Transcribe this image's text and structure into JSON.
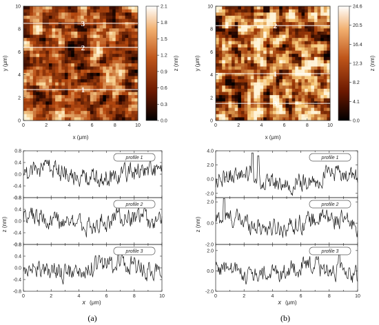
{
  "panels": [
    {
      "id": "a",
      "caption": "(a)",
      "afm": {
        "xlabel": "x  (μm)",
        "ylabel": "y  (μm)",
        "xticks": [
          "0",
          "2",
          "4",
          "6",
          "8",
          "10"
        ],
        "yticks": [
          "0",
          "2",
          "4",
          "6",
          "8",
          "10"
        ],
        "colorbar_label": "z  (nm)",
        "colorbar_ticks": [
          "2.1",
          "1.8",
          "1.5",
          "1.2",
          "0.9",
          "0.6",
          "0.3",
          "0.0"
        ],
        "colorbar_range": [
          0.0,
          2.1
        ],
        "profile_lines": [
          {
            "label": "1",
            "y_um": 2.7
          },
          {
            "label": "2",
            "y_um": 6.4
          },
          {
            "label": "3",
            "y_um": 8.5
          }
        ],
        "colors": {
          "dark": "#3a0c00",
          "mid": "#b84a10",
          "light": "#f7d090",
          "top": "#fff6dc"
        }
      },
      "profiles": {
        "xlabel": "x",
        "xunit": "(μm)",
        "ylabel": "z  (nm)",
        "xticks": [
          "0",
          "2",
          "4",
          "6",
          "8",
          "10"
        ],
        "subplots": [
          {
            "name": "profile 1",
            "yticks": [
              "0.8",
              "0.4",
              "0.0",
              "-0.4",
              "-0.8"
            ],
            "ylim": [
              -0.8,
              0.8
            ]
          },
          {
            "name": "profile 2",
            "yticks": [
              "0.8",
              "0.4",
              "0.0",
              "-0.4",
              "-0.8"
            ],
            "ylim": [
              -0.8,
              0.8
            ]
          },
          {
            "name": "profile 3",
            "yticks": [
              "0.8",
              "0.4",
              "0.0",
              "-0.4",
              "-0.8"
            ],
            "ylim": [
              -0.8,
              0.8
            ]
          }
        ]
      }
    },
    {
      "id": "b",
      "caption": "(b)",
      "afm": {
        "xlabel": "x  (μm)",
        "ylabel": "y  (μm)",
        "xticks": [
          "0",
          "2",
          "4",
          "6",
          "8",
          "10"
        ],
        "yticks": [
          "0",
          "2",
          "4",
          "6",
          "8",
          "10"
        ],
        "colorbar_label": "z  (nm)",
        "colorbar_ticks": [
          "24.6",
          "20.5",
          "16.4",
          "12.3",
          "8.2",
          "4.1",
          "0.0"
        ],
        "colorbar_range": [
          0.0,
          24.6
        ],
        "profile_lines": [
          {
            "label": "1",
            "y_um": 4.1
          },
          {
            "label": "2",
            "y_um": 8.3
          },
          {
            "label": "3",
            "y_um": 1.5
          }
        ],
        "colors": {
          "dark": "#250600",
          "mid": "#a03a08",
          "light": "#f4c270",
          "top": "#fff8e4"
        }
      },
      "profiles": {
        "xlabel": "x",
        "xunit": "(μm)",
        "ylabel": "z  (nm)",
        "xticks": [
          "0",
          "2",
          "4",
          "6",
          "8",
          "10"
        ],
        "subplots": [
          {
            "name": "profile 1",
            "yticks": [
              "4.0",
              "2.0",
              "0.0",
              "-2.0"
            ],
            "ylim": [
              -2.6,
              4.0
            ]
          },
          {
            "name": "profile 2",
            "yticks": [
              "2.0",
              "0.0",
              "-2.0"
            ],
            "ylim": [
              -2.0,
              2.4
            ]
          },
          {
            "name": "profile 3",
            "yticks": [
              "2.0",
              "0.0",
              "-2.0"
            ],
            "ylim": [
              -2.0,
              2.6
            ]
          }
        ]
      }
    }
  ]
}
